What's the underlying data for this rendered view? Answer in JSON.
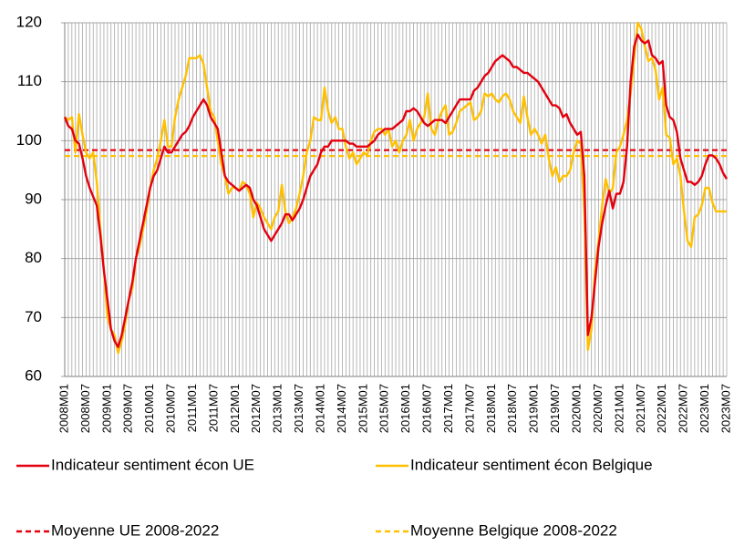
{
  "chart_data": {
    "type": "line",
    "categories": [
      "2008M01",
      null,
      null,
      null,
      null,
      null,
      "2008M07",
      null,
      null,
      null,
      null,
      null,
      "2009M01",
      null,
      null,
      null,
      null,
      null,
      "2009M07",
      null,
      null,
      null,
      null,
      null,
      "2010M01",
      null,
      null,
      null,
      null,
      null,
      "2010M07",
      null,
      null,
      null,
      null,
      null,
      "2011M01",
      null,
      null,
      null,
      null,
      null,
      "2011M07",
      null,
      null,
      null,
      null,
      null,
      "2012M01",
      null,
      null,
      null,
      null,
      null,
      "2012M07",
      null,
      null,
      null,
      null,
      null,
      "2013M01",
      null,
      null,
      null,
      null,
      null,
      "2013M07",
      null,
      null,
      null,
      null,
      null,
      "2014M01",
      null,
      null,
      null,
      null,
      null,
      "2014M07",
      null,
      null,
      null,
      null,
      null,
      "2015M01",
      null,
      null,
      null,
      null,
      null,
      "2015M07",
      null,
      null,
      null,
      null,
      null,
      "2016M01",
      null,
      null,
      null,
      null,
      null,
      "2016M07",
      null,
      null,
      null,
      null,
      null,
      "2017M01",
      null,
      null,
      null,
      null,
      null,
      "2017M07",
      null,
      null,
      null,
      null,
      null,
      "2018M01",
      null,
      null,
      null,
      null,
      null,
      "2018M07",
      null,
      null,
      null,
      null,
      null,
      "2019M01",
      null,
      null,
      null,
      null,
      null,
      "2019M07",
      null,
      null,
      null,
      null,
      null,
      "2020M01",
      null,
      null,
      null,
      null,
      null,
      "2020M07",
      null,
      null,
      null,
      null,
      null,
      "2021M01",
      null,
      null,
      null,
      null,
      null,
      "2021M07",
      null,
      null,
      null,
      null,
      null,
      "2022M01",
      null,
      null,
      null,
      null,
      null,
      "2022M07",
      null,
      null,
      null,
      null,
      null,
      "2023M01",
      null,
      null,
      null,
      null,
      null,
      "2023M07"
    ],
    "series": [
      {
        "name": "Indicateur sentiment écon UE",
        "color": "#e3000f",
        "values": [
          104,
          102.5,
          102,
          100,
          99.5,
          97,
          94,
          92,
          90.5,
          89,
          84,
          78,
          73,
          68,
          66,
          65,
          67,
          70,
          73,
          76,
          80,
          83,
          86,
          89,
          92,
          94,
          95,
          97,
          99,
          98,
          98,
          99,
          100,
          101,
          101.5,
          102.5,
          104,
          105,
          106,
          107,
          106,
          104,
          103,
          102,
          98,
          94,
          93,
          92.5,
          92,
          91.5,
          92,
          92.5,
          92,
          90,
          89,
          87,
          85,
          84,
          83,
          84,
          85,
          86,
          87.5,
          87.5,
          86.5,
          87.5,
          88.5,
          90,
          92,
          94,
          95,
          96,
          98,
          99,
          99,
          100,
          100,
          100,
          100,
          100,
          99.5,
          99.5,
          99,
          99,
          99,
          99,
          99.5,
          100,
          101,
          101.5,
          102,
          102,
          102,
          102.5,
          103,
          103.5,
          105,
          105,
          105.5,
          105,
          104,
          103,
          102.5,
          103,
          103.5,
          103.5,
          103.5,
          103,
          104,
          105,
          106,
          107,
          107,
          107,
          107,
          108.5,
          109,
          110,
          111,
          111.5,
          112.5,
          113.5,
          114,
          114.5,
          114,
          113.5,
          112.5,
          112.5,
          112,
          111.5,
          111.5,
          111,
          110.5,
          110,
          109,
          108,
          107,
          106,
          106,
          105.5,
          104,
          104.5,
          103,
          102,
          101,
          101.5,
          94,
          67,
          70,
          76,
          82,
          86,
          89,
          91.5,
          88.5,
          91,
          91,
          93,
          99,
          110,
          116,
          118,
          117,
          116.5,
          117,
          114.5,
          114,
          113,
          113.5,
          106,
          104,
          103.5,
          101.5,
          97,
          95,
          93,
          93,
          92.5,
          93,
          94,
          96,
          97.5,
          97.5,
          97,
          96,
          94.5,
          93.5
        ]
      },
      {
        "name": "Indicateur sentiment écon Belgique",
        "color": "#ffc000",
        "values": [
          104,
          103.5,
          104,
          98,
          104.5,
          101,
          98,
          97,
          98,
          93,
          85,
          78,
          70,
          68,
          67,
          64,
          66,
          69,
          73,
          75,
          80,
          82,
          85,
          88,
          92,
          95,
          97,
          100,
          103.5,
          99,
          99,
          104,
          107,
          109,
          111,
          114,
          114,
          114,
          114.5,
          113,
          109,
          105,
          104,
          100,
          96,
          94,
          91,
          92,
          92,
          91.5,
          93,
          92.5,
          91,
          87,
          89.5,
          88.5,
          87,
          86,
          85,
          87,
          88,
          92.5,
          88,
          86,
          87,
          88.5,
          91,
          94,
          98,
          100,
          104,
          103.5,
          103.5,
          109,
          105,
          103,
          104,
          102,
          102,
          99,
          97,
          98,
          96,
          97,
          98,
          97.5,
          100,
          101.5,
          102,
          102,
          101,
          102,
          99,
          100,
          98,
          100,
          101,
          103.5,
          100,
          102,
          103,
          104,
          108,
          102,
          101,
          103.5,
          105,
          106,
          101,
          101.5,
          103,
          105,
          105.5,
          106,
          106.5,
          103.5,
          104,
          105,
          108,
          107.5,
          108,
          107,
          106.5,
          107.5,
          108,
          107,
          105,
          104,
          103,
          107.5,
          104,
          101,
          102,
          101,
          99.5,
          101,
          97,
          94,
          95.5,
          93,
          94,
          94,
          95,
          98,
          100,
          99.5,
          88,
          64.5,
          68,
          78,
          83,
          89,
          93.5,
          91,
          92,
          98,
          99,
          101,
          103.5,
          108,
          114,
          120,
          119,
          116,
          113.5,
          114,
          112,
          107,
          109,
          101,
          100.5,
          96,
          97,
          94,
          88,
          83,
          82,
          87,
          87.5,
          89,
          92,
          92,
          89.5,
          88,
          88,
          88,
          88
        ]
      }
    ],
    "reference_lines": [
      {
        "name": "Moyenne UE 2008-2022",
        "color": "#e3000f",
        "value": 98.4
      },
      {
        "name": "Moyenne Belgique 2008-2022",
        "color": "#ffc000",
        "value": 97.4
      }
    ],
    "ylim": [
      60,
      120
    ],
    "yticks": [
      60,
      70,
      80,
      90,
      100,
      110,
      120
    ],
    "grid": true
  }
}
